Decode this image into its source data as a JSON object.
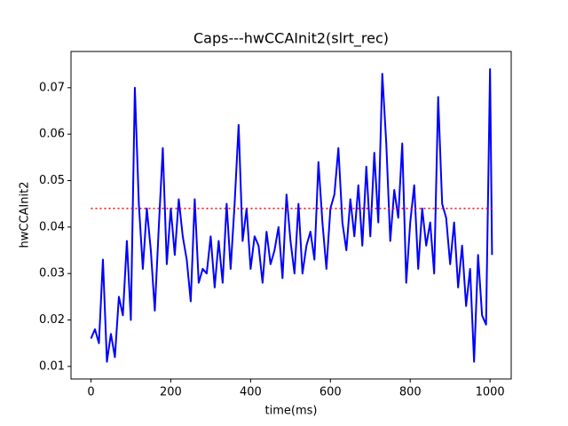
{
  "chart_data": {
    "type": "line",
    "title": "Caps---hwCCAInit2(slrt_rec)",
    "xlabel": "time(ms)",
    "ylabel": "hwCCAInit2",
    "x": [
      0,
      10,
      20,
      30,
      40,
      50,
      60,
      70,
      80,
      90,
      100,
      110,
      120,
      130,
      140,
      150,
      160,
      170,
      180,
      190,
      200,
      210,
      220,
      230,
      240,
      250,
      260,
      270,
      280,
      290,
      300,
      310,
      320,
      330,
      340,
      350,
      360,
      370,
      380,
      390,
      400,
      410,
      420,
      430,
      440,
      450,
      460,
      470,
      480,
      490,
      500,
      510,
      520,
      530,
      540,
      550,
      560,
      570,
      580,
      590,
      600,
      610,
      620,
      630,
      640,
      650,
      660,
      670,
      680,
      690,
      700,
      710,
      720,
      730,
      740,
      750,
      760,
      770,
      780,
      790,
      800,
      810,
      820,
      830,
      840,
      850,
      860,
      870,
      880,
      890,
      900,
      910,
      920,
      930,
      940,
      950,
      960,
      970,
      980,
      990,
      1000,
      1005
    ],
    "series": [
      {
        "color": "#0000ff",
        "values": [
          0.016,
          0.018,
          0.015,
          0.033,
          0.011,
          0.017,
          0.012,
          0.025,
          0.021,
          0.037,
          0.02,
          0.07,
          0.045,
          0.031,
          0.044,
          0.035,
          0.022,
          0.04,
          0.057,
          0.032,
          0.044,
          0.034,
          0.046,
          0.038,
          0.033,
          0.024,
          0.046,
          0.028,
          0.031,
          0.03,
          0.038,
          0.027,
          0.037,
          0.028,
          0.045,
          0.031,
          0.045,
          0.062,
          0.037,
          0.044,
          0.031,
          0.038,
          0.036,
          0.028,
          0.039,
          0.032,
          0.035,
          0.04,
          0.029,
          0.047,
          0.037,
          0.03,
          0.045,
          0.03,
          0.036,
          0.039,
          0.033,
          0.054,
          0.041,
          0.031,
          0.044,
          0.047,
          0.057,
          0.041,
          0.035,
          0.046,
          0.038,
          0.049,
          0.036,
          0.053,
          0.038,
          0.056,
          0.041,
          0.073,
          0.058,
          0.037,
          0.048,
          0.042,
          0.058,
          0.028,
          0.041,
          0.049,
          0.031,
          0.044,
          0.036,
          0.041,
          0.03,
          0.068,
          0.045,
          0.042,
          0.032,
          0.041,
          0.027,
          0.036,
          0.023,
          0.031,
          0.011,
          0.034,
          0.021,
          0.019,
          0.074,
          0.034
        ]
      }
    ],
    "hline": {
      "y": 0.044,
      "x": [
        0,
        1005
      ],
      "color": "#ff0000",
      "style": "dotted"
    },
    "xlim": [
      -50,
      1053
    ],
    "ylim": [
      0.0073,
      0.0778
    ],
    "xticks": [
      0,
      200,
      400,
      600,
      800,
      1000
    ],
    "yticks": [
      0.01,
      0.02,
      0.03,
      0.04,
      0.05,
      0.06,
      0.07
    ]
  }
}
